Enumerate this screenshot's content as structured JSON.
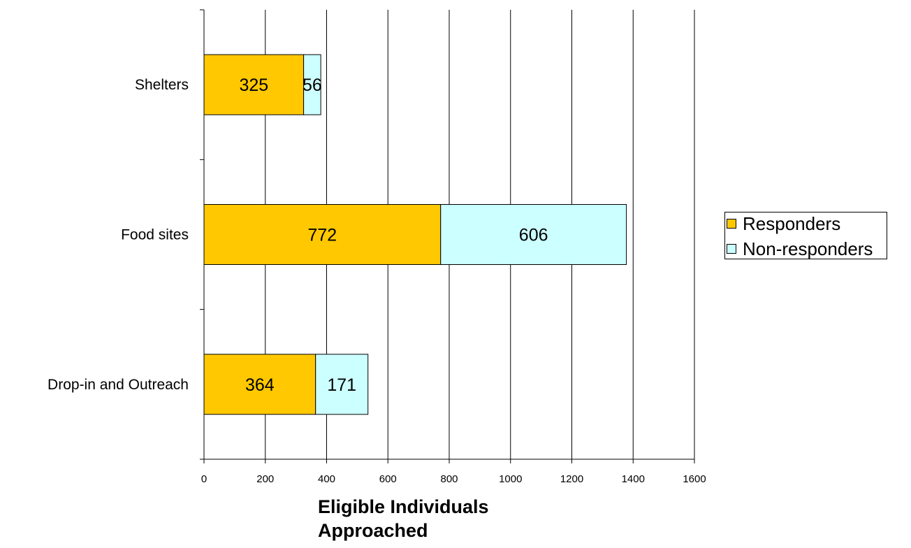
{
  "chart_data": {
    "type": "bar",
    "orientation": "horizontal",
    "stacked": true,
    "categories": [
      "Shelters",
      "Food sites",
      "Drop-in and Outreach"
    ],
    "series": [
      {
        "name": "Responders",
        "values": [
          325,
          772,
          364
        ],
        "color": "#FFC800"
      },
      {
        "name": "Non-responders",
        "values": [
          56,
          606,
          171
        ],
        "color": "#CCFFFF"
      }
    ],
    "xlabel": "Eligible Individuals Approached",
    "ylabel": "",
    "xlim": [
      0,
      1600
    ],
    "xticks": [
      "0",
      "200",
      "400",
      "600",
      "800",
      "1000",
      "1200",
      "1400",
      "1600"
    ],
    "grid": "vertical",
    "legend_position": "right"
  }
}
